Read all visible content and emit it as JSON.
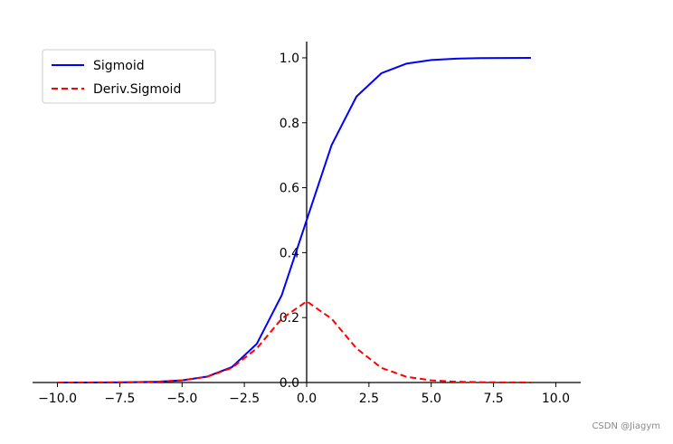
{
  "chart_data": {
    "type": "line",
    "title": "",
    "xlabel": "",
    "ylabel": "",
    "xlim": [
      -11,
      11
    ],
    "ylim": [
      0,
      1.05
    ],
    "x_ticks": [
      -10,
      -7.5,
      -5,
      -2.5,
      0,
      2.5,
      5,
      7.5,
      10
    ],
    "x_tick_labels": [
      "−10.0",
      "−7.5",
      "−5.0",
      "−2.5",
      "0.0",
      "2.5",
      "5.0",
      "7.5",
      "10.0"
    ],
    "y_ticks": [
      0,
      0.2,
      0.4,
      0.6,
      0.8,
      1.0
    ],
    "y_tick_labels": [
      "0.0",
      "0.2",
      "0.4",
      "0.6",
      "0.8",
      "1.0"
    ],
    "grid": false,
    "legend": "top-left",
    "series": [
      {
        "name": "Sigmoid",
        "color": "#0000ff",
        "style": "solid",
        "x": [
          -10,
          -9,
          -8,
          -7,
          -6,
          -5,
          -4,
          -3,
          -2,
          -1,
          0,
          1,
          2,
          3,
          4,
          5,
          6,
          7,
          8,
          9
        ],
        "values": [
          4.54e-05,
          0.0001234,
          0.0003354,
          0.000911,
          0.002473,
          0.006693,
          0.017986,
          0.047426,
          0.119203,
          0.268941,
          0.5,
          0.731059,
          0.880797,
          0.952574,
          0.982014,
          0.993307,
          0.997527,
          0.999089,
          0.999665,
          0.999877
        ]
      },
      {
        "name": "Deriv.Sigmoid",
        "color": "#ff0000",
        "style": "dashed",
        "x": [
          -10,
          -9,
          -8,
          -7,
          -6,
          -5,
          -4,
          -3,
          -2,
          -1,
          0,
          1,
          2,
          3,
          4,
          5,
          6,
          7,
          8,
          9
        ],
        "values": [
          4.54e-05,
          0.0001234,
          0.0003353,
          0.00091,
          0.002467,
          0.006648,
          0.017663,
          0.045177,
          0.104994,
          0.196612,
          0.25,
          0.196612,
          0.104994,
          0.045177,
          0.017663,
          0.006648,
          0.002467,
          0.00091,
          0.0003353,
          0.0001234
        ]
      }
    ]
  },
  "watermark": "CSDN @Jiagym"
}
